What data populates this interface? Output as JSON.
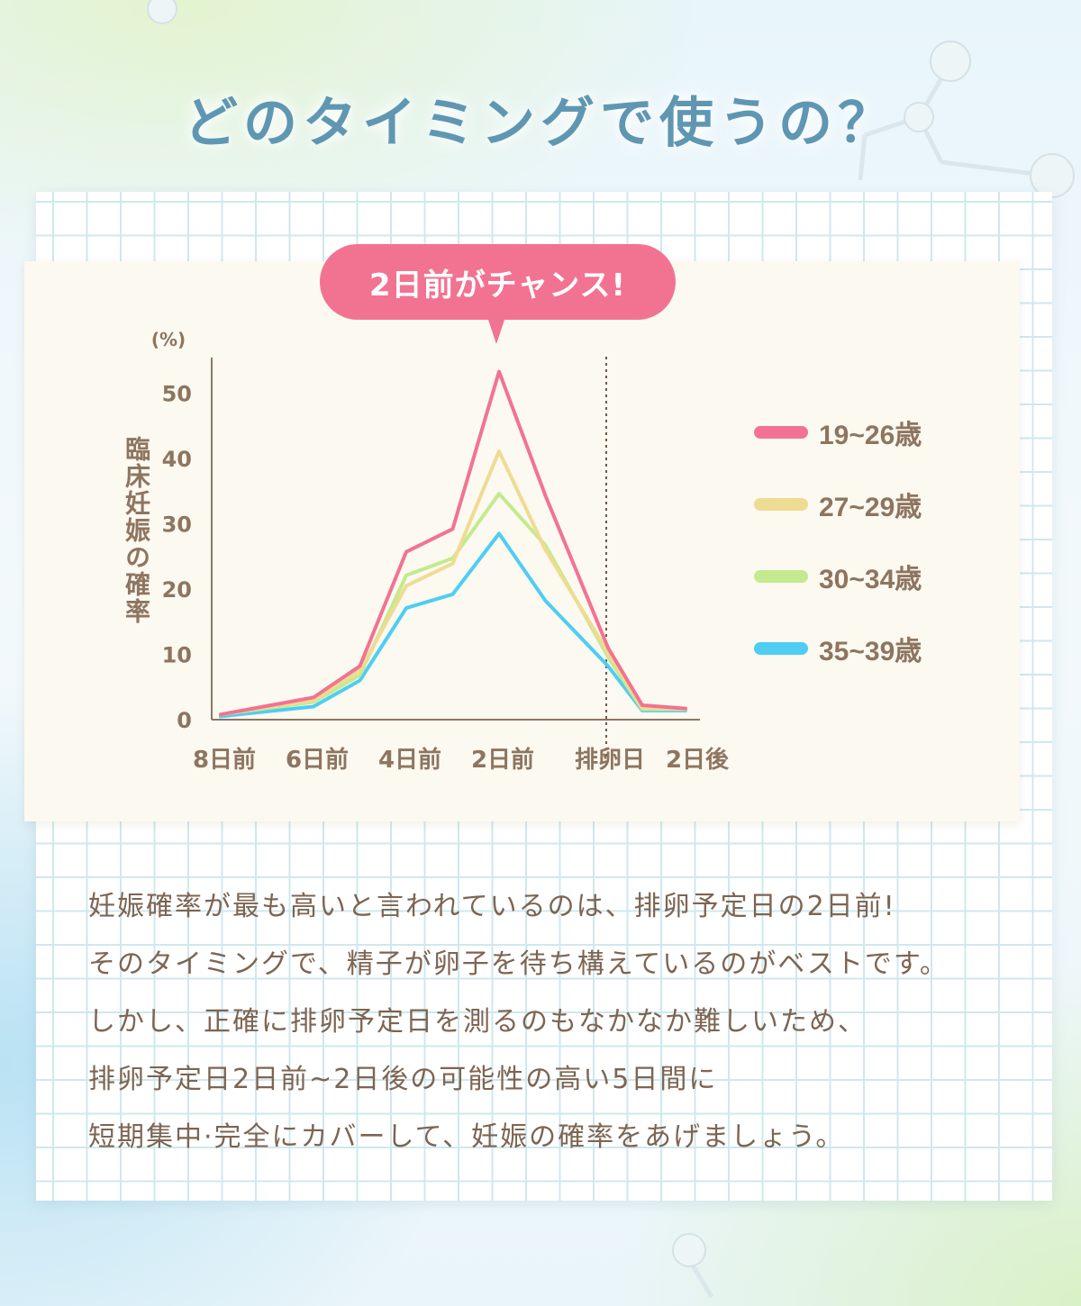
{
  "heading": "どのタイミングで使うの？",
  "callout": "2日前がチャンス!",
  "chart_data": {
    "type": "line",
    "unit_label": "(%)",
    "ylabel": "臨床妊娠の確率",
    "ylim": [
      0,
      55
    ],
    "y_ticks": [
      "0",
      "10",
      "20",
      "30",
      "40",
      "50"
    ],
    "x_tick_labels": [
      "8日前",
      "6日前",
      "4日前",
      "2日前",
      "排卵日",
      "2日後"
    ],
    "x": [
      -8,
      -6,
      -5,
      -4,
      -3,
      -2,
      -1,
      0,
      1,
      2
    ],
    "reference_line": {
      "x": 0,
      "style": "dotted"
    },
    "grid": false,
    "legend_position": "right",
    "series": [
      {
        "name": "19~26歳",
        "color": "#f27391",
        "values": [
          0.8,
          3.4,
          8.2,
          25.7,
          29.2,
          53.3,
          34.3,
          11.0,
          2.2,
          1.7
        ]
      },
      {
        "name": "27~29歳",
        "color": "#efdb93",
        "values": [
          0.8,
          3.0,
          7.5,
          20.5,
          23.9,
          41.1,
          26.0,
          10.3,
          1.8,
          1.6
        ]
      },
      {
        "name": "30~34歳",
        "color": "#c3ea8f",
        "values": [
          0.8,
          2.7,
          6.8,
          22.1,
          24.7,
          34.6,
          26.7,
          9.6,
          1.6,
          1.6
        ]
      },
      {
        "name": "35~39歳",
        "color": "#4fcdf3",
        "values": [
          0.5,
          2.0,
          6.0,
          17.1,
          19.2,
          28.5,
          18.2,
          8.2,
          1.4,
          1.4
        ]
      }
    ]
  },
  "body_lines": [
    "妊娠確率が最も高いと言われているのは、排卵予定日の2日前!",
    "そのタイミングで、精子が卵子を待ち構えているのがベストです。",
    "しかし、正確に排卵予定日を測るのもなかなか難しいため、",
    "排卵予定日2日前~2日後の可能性の高い5日間に",
    "短期集中·完全にカバーして、妊娠の確率をあげましょう。"
  ]
}
